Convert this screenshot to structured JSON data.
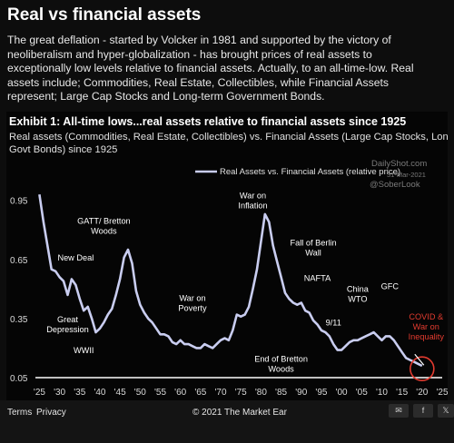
{
  "header": {
    "title": "Real vs financial assets",
    "intro_lines": [
      "The great deflation - started by Volcker in 1981 and supported by the victory of",
      "neoliberalism and hyper-globalization - has brought prices of real assets to",
      "exceptionally low levels relative to financial assets. Actually, to an all-time-low. Real",
      "assets include; Commodities, Real Estate, Collectibles, while Financial Assets",
      "represent; Large Cap Stocks and Long-term Government Bonds."
    ]
  },
  "chart_data": {
    "type": "line",
    "title": "Exhibit 1: All-time lows...real assets relative to financial assets since 1925",
    "subtitle_lines": [
      "Real assets (Commodities, Real Estate, Collectibles) vs. Financial Assets (Large Cap Stocks, Long-term",
      "Govt Bonds) since 1925"
    ],
    "watermark_lines": [
      "DailyShot.com",
      "31-Mar-2021",
      "@SoberLook"
    ],
    "series": [
      {
        "name": "Real Assets vs. Financial Assets (relative price)",
        "color": "#c9cdf0",
        "points": [
          [
            1925,
            0.98
          ],
          [
            1926,
            0.84
          ],
          [
            1927,
            0.72
          ],
          [
            1928,
            0.6
          ],
          [
            1929,
            0.59
          ],
          [
            1930,
            0.56
          ],
          [
            1931,
            0.54
          ],
          [
            1932,
            0.47
          ],
          [
            1933,
            0.55
          ],
          [
            1934,
            0.52
          ],
          [
            1935,
            0.45
          ],
          [
            1936,
            0.39
          ],
          [
            1937,
            0.41
          ],
          [
            1938,
            0.35
          ],
          [
            1939,
            0.28
          ],
          [
            1940,
            0.3
          ],
          [
            1941,
            0.33
          ],
          [
            1942,
            0.37
          ],
          [
            1943,
            0.4
          ],
          [
            1944,
            0.47
          ],
          [
            1945,
            0.55
          ],
          [
            1946,
            0.66
          ],
          [
            1947,
            0.7
          ],
          [
            1948,
            0.63
          ],
          [
            1949,
            0.49
          ],
          [
            1950,
            0.42
          ],
          [
            1951,
            0.38
          ],
          [
            1952,
            0.35
          ],
          [
            1953,
            0.33
          ],
          [
            1954,
            0.3
          ],
          [
            1955,
            0.27
          ],
          [
            1956,
            0.27
          ],
          [
            1957,
            0.26
          ],
          [
            1958,
            0.23
          ],
          [
            1959,
            0.22
          ],
          [
            1960,
            0.24
          ],
          [
            1961,
            0.22
          ],
          [
            1962,
            0.22
          ],
          [
            1963,
            0.21
          ],
          [
            1964,
            0.2
          ],
          [
            1965,
            0.2
          ],
          [
            1966,
            0.22
          ],
          [
            1967,
            0.21
          ],
          [
            1968,
            0.2
          ],
          [
            1969,
            0.22
          ],
          [
            1970,
            0.24
          ],
          [
            1971,
            0.25
          ],
          [
            1972,
            0.24
          ],
          [
            1973,
            0.29
          ],
          [
            1974,
            0.37
          ],
          [
            1975,
            0.36
          ],
          [
            1976,
            0.37
          ],
          [
            1977,
            0.41
          ],
          [
            1978,
            0.5
          ],
          [
            1979,
            0.6
          ],
          [
            1980,
            0.74
          ],
          [
            1981,
            0.88
          ],
          [
            1982,
            0.84
          ],
          [
            1983,
            0.72
          ],
          [
            1984,
            0.64
          ],
          [
            1985,
            0.56
          ],
          [
            1986,
            0.48
          ],
          [
            1987,
            0.45
          ],
          [
            1988,
            0.43
          ],
          [
            1989,
            0.42
          ],
          [
            1990,
            0.43
          ],
          [
            1991,
            0.39
          ],
          [
            1992,
            0.38
          ],
          [
            1993,
            0.34
          ],
          [
            1994,
            0.32
          ],
          [
            1995,
            0.29
          ],
          [
            1996,
            0.28
          ],
          [
            1997,
            0.26
          ],
          [
            1998,
            0.22
          ],
          [
            1999,
            0.19
          ],
          [
            2000,
            0.19
          ],
          [
            2001,
            0.21
          ],
          [
            2002,
            0.23
          ],
          [
            2003,
            0.24
          ],
          [
            2004,
            0.24
          ],
          [
            2005,
            0.25
          ],
          [
            2006,
            0.26
          ],
          [
            2007,
            0.27
          ],
          [
            2008,
            0.28
          ],
          [
            2009,
            0.26
          ],
          [
            2010,
            0.24
          ],
          [
            2011,
            0.26
          ],
          [
            2012,
            0.26
          ],
          [
            2013,
            0.24
          ],
          [
            2014,
            0.21
          ],
          [
            2015,
            0.18
          ],
          [
            2016,
            0.15
          ],
          [
            2017,
            0.14
          ],
          [
            2018,
            0.13
          ],
          [
            2019,
            0.12
          ],
          [
            2020,
            0.11
          ]
        ]
      }
    ],
    "xlim": [
      1924,
      2025
    ],
    "ylim": [
      0.05,
      1.05
    ],
    "x_ticks": [
      {
        "label": "'25",
        "v": 1925
      },
      {
        "label": "'30",
        "v": 1930
      },
      {
        "label": "'35",
        "v": 1935
      },
      {
        "label": "'40",
        "v": 1940
      },
      {
        "label": "'45",
        "v": 1945
      },
      {
        "label": "'50",
        "v": 1950
      },
      {
        "label": "'55",
        "v": 1955
      },
      {
        "label": "'60",
        "v": 1960
      },
      {
        "label": "'65",
        "v": 1965
      },
      {
        "label": "'70",
        "v": 1970
      },
      {
        "label": "'75",
        "v": 1975
      },
      {
        "label": "'80",
        "v": 1980
      },
      {
        "label": "'85",
        "v": 1985
      },
      {
        "label": "'90",
        "v": 1990
      },
      {
        "label": "'95",
        "v": 1995
      },
      {
        "label": "'00",
        "v": 2000
      },
      {
        "label": "'05",
        "v": 2005
      },
      {
        "label": "'10",
        "v": 2010
      },
      {
        "label": "'15",
        "v": 2015
      },
      {
        "label": "'20",
        "v": 2020
      },
      {
        "label": "'25",
        "v": 2025
      }
    ],
    "y_ticks": [
      {
        "label": "0.95",
        "v": 0.95
      },
      {
        "label": "0.65",
        "v": 0.65
      },
      {
        "label": "0.35",
        "v": 0.35
      },
      {
        "label": "0.05",
        "v": 0.05
      }
    ],
    "annotations": [
      {
        "lines": [
          "Great",
          "Depression"
        ],
        "x": 1932,
        "y": 0.33,
        "color": "#ffffff"
      },
      {
        "lines": [
          "New Deal"
        ],
        "x": 1934,
        "y": 0.645,
        "color": "#ffffff"
      },
      {
        "lines": [
          "GATT/ Bretton",
          "Woods"
        ],
        "x": 1941,
        "y": 0.83,
        "color": "#ffffff"
      },
      {
        "lines": [
          "WWII"
        ],
        "x": 1936,
        "y": 0.175,
        "color": "#ffffff"
      },
      {
        "lines": [
          "War on",
          "Poverty"
        ],
        "x": 1963,
        "y": 0.44,
        "color": "#ffffff"
      },
      {
        "lines": [
          "War on",
          "Inflation"
        ],
        "x": 1978,
        "y": 0.96,
        "color": "#ffffff"
      },
      {
        "lines": [
          "Fall of Berlin",
          "Wall"
        ],
        "x": 1993,
        "y": 0.72,
        "color": "#ffffff"
      },
      {
        "lines": [
          "NAFTA"
        ],
        "x": 1994,
        "y": 0.54,
        "color": "#ffffff"
      },
      {
        "lines": [
          "End of Bretton",
          "Woods"
        ],
        "x": 1985,
        "y": 0.13,
        "color": "#ffffff"
      },
      {
        "lines": [
          "9/11"
        ],
        "x": 1998,
        "y": 0.315,
        "color": "#ffffff"
      },
      {
        "lines": [
          "China",
          "WTO"
        ],
        "x": 2004,
        "y": 0.485,
        "color": "#ffffff"
      },
      {
        "lines": [
          "GFC"
        ],
        "x": 2012,
        "y": 0.5,
        "color": "#ffffff"
      },
      {
        "lines": [
          "COVID &",
          "War on",
          "Inequality"
        ],
        "x": 2021,
        "y": 0.345,
        "color": "#e33b2f"
      }
    ],
    "baseline_value": 0.05,
    "highlight": {
      "x": 2020,
      "y": 0.095,
      "color": "#e33b2f"
    },
    "grid": false,
    "legend_position": "top-center"
  },
  "footer": {
    "links": [
      "Terms",
      "Privacy"
    ],
    "copyright": "© 2021 The Market Ear",
    "icons": [
      {
        "name": "email-icon",
        "glyph": "✉"
      },
      {
        "name": "facebook-icon",
        "glyph": "f"
      },
      {
        "name": "twitter-icon",
        "glyph": "𝕏"
      }
    ]
  }
}
